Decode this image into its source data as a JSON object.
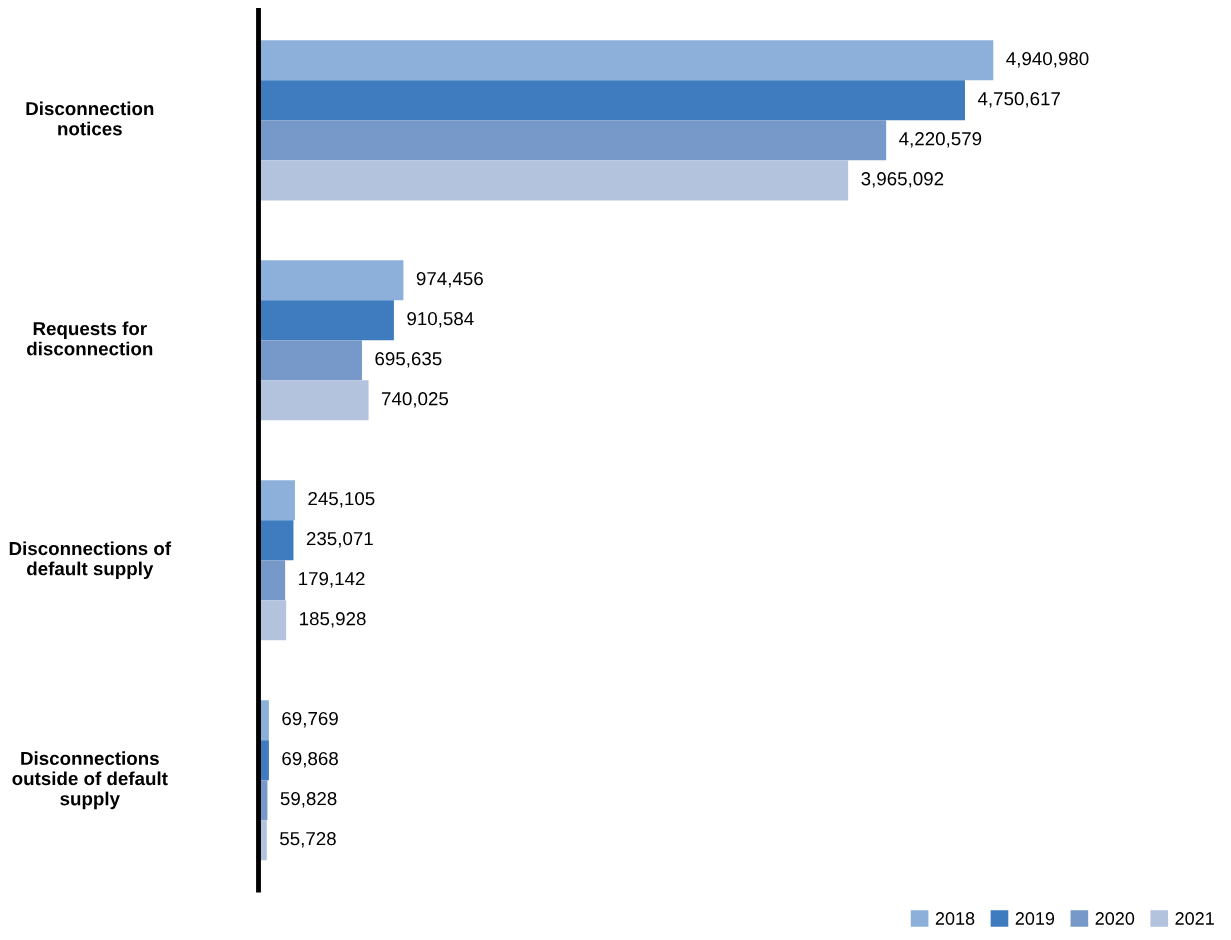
{
  "chart_data": {
    "type": "bar",
    "orientation": "horizontal",
    "legend": "bottom right",
    "categories": [
      "Disconnection notices",
      "Requests for disconnection",
      "Disconnections of default supply",
      "Disconnections outside of default supply"
    ],
    "series": [
      {
        "name": "2018",
        "color": "#8db0da",
        "values": [
          4940980,
          974456,
          245105,
          69769
        ],
        "value_labels": [
          "4,940,980",
          "974,456",
          "245,105",
          "69,769"
        ]
      },
      {
        "name": "2019",
        "color": "#3f7bbf",
        "values": [
          4750617,
          910584,
          235071,
          69868
        ],
        "value_labels": [
          "4,750,617",
          "910,584",
          "235,071",
          "69,868"
        ]
      },
      {
        "name": "2020",
        "color": "#7799c9",
        "values": [
          4220579,
          695635,
          179142,
          59828
        ],
        "value_labels": [
          "4,220,579",
          "695,635",
          "179,142",
          "59,828"
        ]
      },
      {
        "name": "2021",
        "color": "#b3c3de",
        "values": [
          3965092,
          740025,
          185928,
          55728
        ],
        "value_labels": [
          "3,965,092",
          "740,025",
          "185,928",
          "55,728"
        ]
      }
    ]
  }
}
